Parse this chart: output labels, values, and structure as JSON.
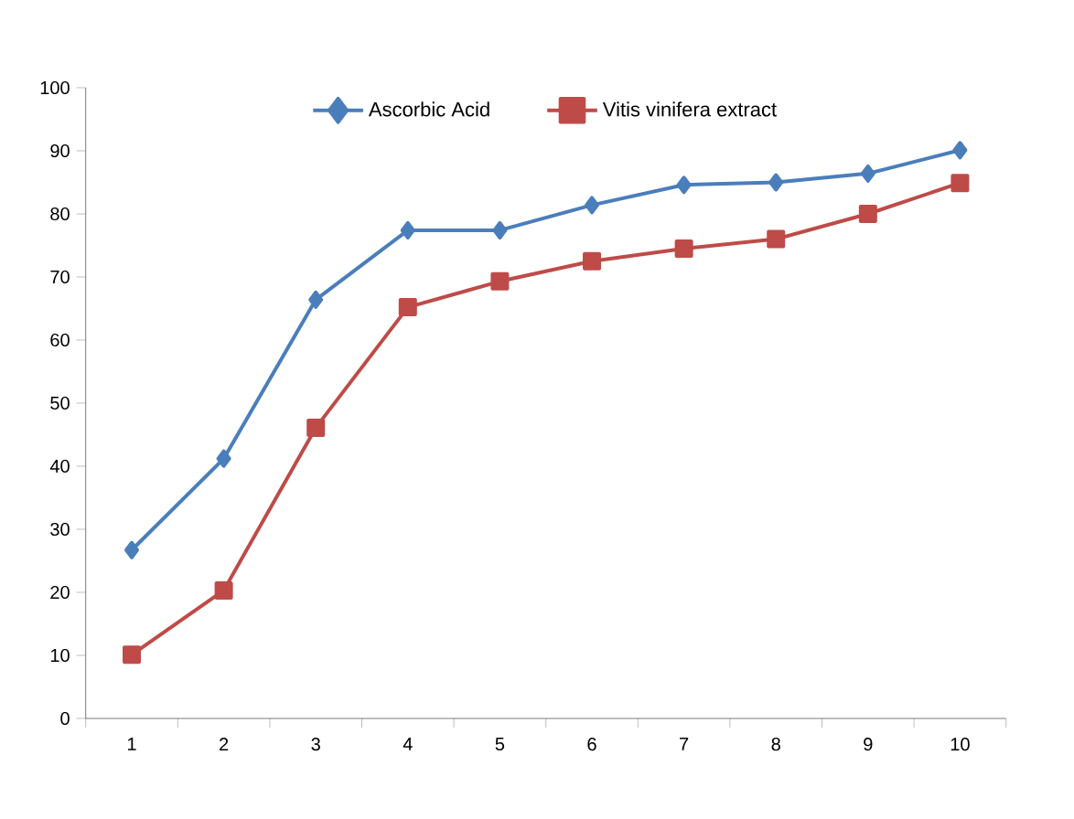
{
  "chart_data": {
    "type": "line",
    "categories": [
      "1",
      "2",
      "3",
      "4",
      "5",
      "6",
      "7",
      "8",
      "9",
      "10"
    ],
    "series": [
      {
        "name": "Ascorbic Acid",
        "color": "#4a7ebb",
        "marker": "diamond",
        "values": [
          26.7,
          41.2,
          66.4,
          77.4,
          77.4,
          81.4,
          84.6,
          85,
          86.4,
          90.1
        ]
      },
      {
        "name": "Vitis vinifera extract",
        "color": "#be4b48",
        "marker": "square",
        "values": [
          10.1,
          20.3,
          46.1,
          65.2,
          69.3,
          72.5,
          74.5,
          76,
          80,
          84.9
        ]
      }
    ],
    "ylim": [
      0,
      100
    ],
    "yticks": [
      0,
      10,
      20,
      30,
      40,
      50,
      60,
      70,
      80,
      90,
      100
    ],
    "legend": "top"
  }
}
